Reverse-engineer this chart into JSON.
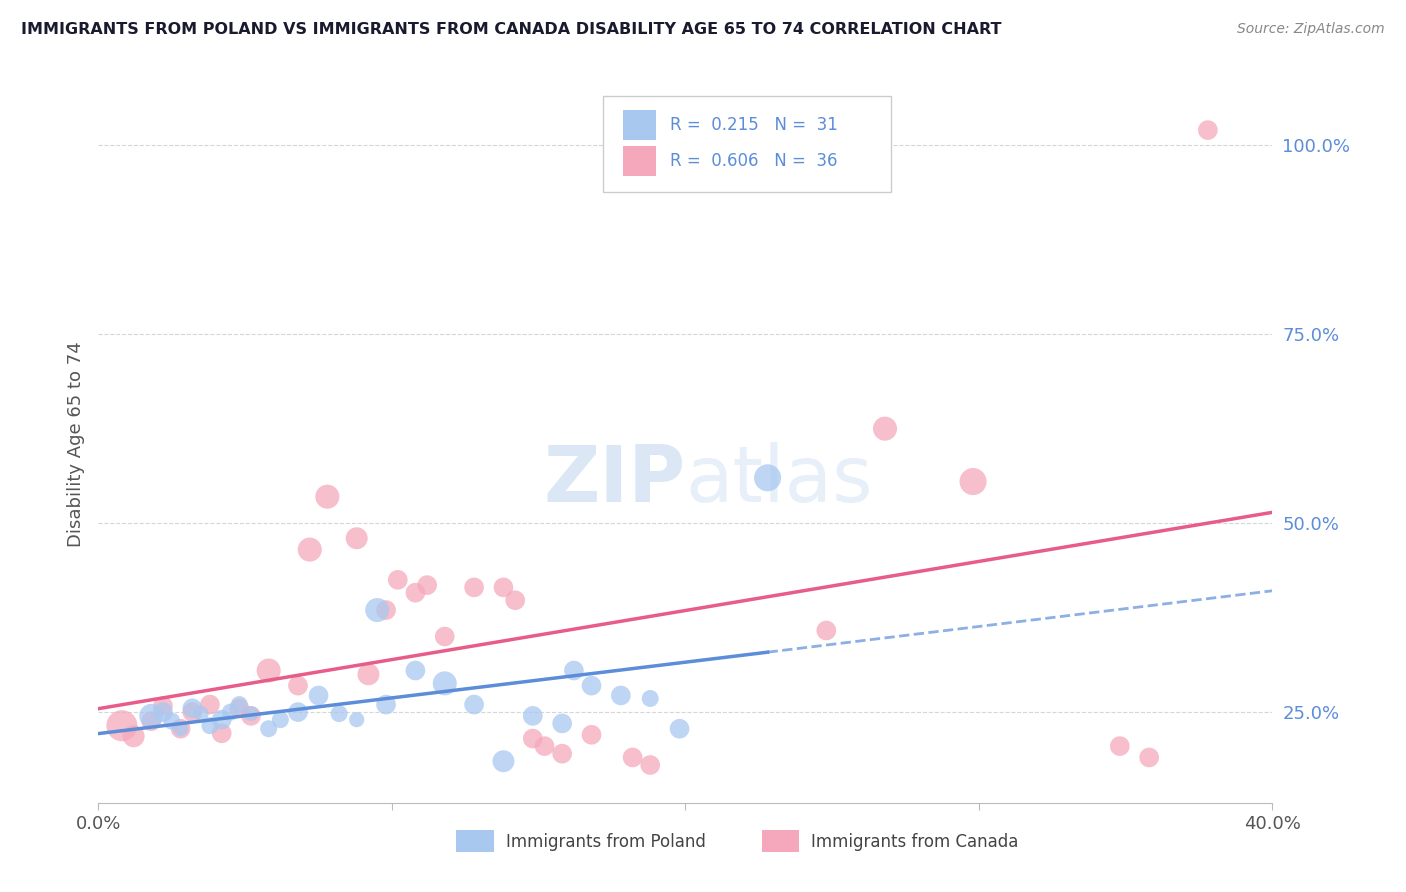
{
  "title": "IMMIGRANTS FROM POLAND VS IMMIGRANTS FROM CANADA DISABILITY AGE 65 TO 74 CORRELATION CHART",
  "source": "Source: ZipAtlas.com",
  "ylabel_label": "Disability Age 65 to 74",
  "xlim": [
    0.0,
    0.4
  ],
  "ylim": [
    0.13,
    1.08
  ],
  "xticks": [
    0.0,
    0.1,
    0.2,
    0.3,
    0.4
  ],
  "xticklabels": [
    "0.0%",
    "",
    "",
    "",
    "40.0%"
  ],
  "ytick_positions": [
    0.25,
    0.5,
    0.75,
    1.0
  ],
  "yticklabels": [
    "25.0%",
    "50.0%",
    "75.0%",
    "100.0%"
  ],
  "legend_r_poland": "0.215",
  "legend_n_poland": "31",
  "legend_r_canada": "0.606",
  "legend_n_canada": "36",
  "poland_color": "#a8c8f0",
  "canada_color": "#f5a8bc",
  "poland_line_color": "#5b8dd9",
  "canada_line_color": "#e85c8a",
  "grid_color": "#cccccc",
  "watermark_color": "#c5d8f0",
  "poland_scatter_x": [
    0.018,
    0.022,
    0.025,
    0.028,
    0.032,
    0.035,
    0.038,
    0.042,
    0.045,
    0.048,
    0.052,
    0.058,
    0.062,
    0.068,
    0.075,
    0.082,
    0.088,
    0.095,
    0.098,
    0.108,
    0.118,
    0.128,
    0.138,
    0.148,
    0.158,
    0.162,
    0.168,
    0.178,
    0.188,
    0.198,
    0.228
  ],
  "poland_scatter_y": [
    0.245,
    0.25,
    0.238,
    0.228,
    0.255,
    0.248,
    0.232,
    0.24,
    0.25,
    0.26,
    0.248,
    0.228,
    0.24,
    0.25,
    0.272,
    0.248,
    0.24,
    0.385,
    0.26,
    0.305,
    0.288,
    0.26,
    0.185,
    0.245,
    0.235,
    0.305,
    0.285,
    0.272,
    0.268,
    0.228,
    0.56
  ],
  "poland_scatter_size": [
    300,
    200,
    150,
    120,
    200,
    120,
    150,
    200,
    150,
    150,
    120,
    150,
    150,
    200,
    200,
    150,
    120,
    300,
    200,
    200,
    300,
    200,
    250,
    200,
    200,
    200,
    200,
    200,
    150,
    200,
    380
  ],
  "canada_scatter_x": [
    0.008,
    0.012,
    0.018,
    0.022,
    0.028,
    0.032,
    0.038,
    0.042,
    0.048,
    0.052,
    0.058,
    0.068,
    0.072,
    0.078,
    0.088,
    0.092,
    0.098,
    0.102,
    0.108,
    0.112,
    0.118,
    0.128,
    0.138,
    0.142,
    0.148,
    0.152,
    0.158,
    0.168,
    0.182,
    0.188,
    0.248,
    0.268,
    0.298,
    0.348,
    0.358,
    0.378
  ],
  "canada_scatter_y": [
    0.232,
    0.218,
    0.238,
    0.258,
    0.228,
    0.25,
    0.26,
    0.222,
    0.255,
    0.245,
    0.305,
    0.285,
    0.465,
    0.535,
    0.48,
    0.3,
    0.385,
    0.425,
    0.408,
    0.418,
    0.35,
    0.415,
    0.415,
    0.398,
    0.215,
    0.205,
    0.195,
    0.22,
    0.19,
    0.18,
    0.358,
    0.625,
    0.555,
    0.205,
    0.19,
    1.02
  ],
  "canada_scatter_size": [
    500,
    250,
    200,
    200,
    200,
    200,
    200,
    200,
    200,
    200,
    300,
    200,
    300,
    300,
    250,
    250,
    200,
    200,
    200,
    200,
    200,
    200,
    200,
    200,
    200,
    200,
    200,
    200,
    200,
    200,
    200,
    300,
    380,
    200,
    200,
    200
  ]
}
